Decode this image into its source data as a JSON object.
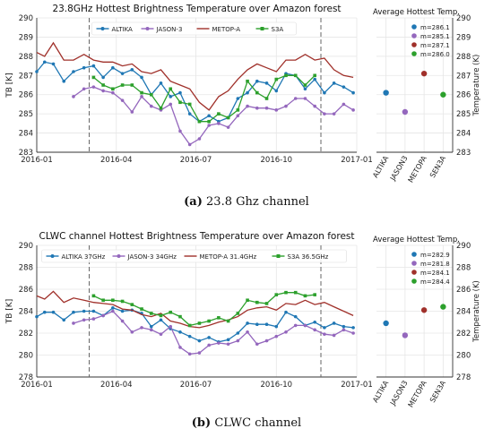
{
  "colors": {
    "ALTIKA": "#1f77b4",
    "JASON-3": "#9467bd",
    "METOP-A": "#a0302a",
    "S3A": "#2ca02c"
  },
  "captions": [
    {
      "letter": "(a)",
      "text": " 23.8 Ghz channel"
    },
    {
      "letter": "(b)",
      "text": " CLWC channel"
    }
  ],
  "chart_data": [
    {
      "type": "line",
      "title": "23.8GHz Hottest Brightness Temperature over Amazon forest",
      "xlabel": "",
      "ylabel": "TB [K]",
      "ylim": [
        283,
        290
      ],
      "yticks": [
        283,
        284,
        285,
        286,
        287,
        288,
        289,
        290
      ],
      "xticks": [
        "2016-01",
        "2016-04",
        "2016-07",
        "2016-10",
        "2017-01"
      ],
      "xrange": [
        "2016-01-01",
        "2017-01-01"
      ],
      "grid": true,
      "legend": "top-center",
      "vlines": [
        "2016-03-01",
        "2016-11-21"
      ],
      "series": [
        {
          "name": "ALTIKA",
          "marker": "dot",
          "x": [
            "2016-01-01",
            "2016-01-10",
            "2016-01-20",
            "2016-02-01",
            "2016-02-12",
            "2016-02-24",
            "2016-03-06",
            "2016-03-17",
            "2016-03-28",
            "2016-04-08",
            "2016-04-19",
            "2016-04-30",
            "2016-05-11",
            "2016-05-22",
            "2016-06-02",
            "2016-06-13",
            "2016-06-24",
            "2016-07-05",
            "2016-07-16",
            "2016-07-27",
            "2016-08-07",
            "2016-08-18",
            "2016-08-29",
            "2016-09-09",
            "2016-09-20",
            "2016-10-01",
            "2016-10-12",
            "2016-10-23",
            "2016-11-03",
            "2016-11-14",
            "2016-11-25",
            "2016-12-06",
            "2016-12-17",
            "2016-12-28"
          ],
          "y": [
            287.2,
            287.7,
            287.6,
            286.7,
            287.2,
            287.4,
            287.5,
            286.9,
            287.4,
            287.1,
            287.3,
            286.9,
            286.0,
            286.6,
            285.9,
            286.1,
            285.0,
            284.6,
            284.9,
            284.6,
            284.8,
            285.8,
            286.1,
            286.7,
            286.6,
            286.2,
            287.1,
            287.0,
            286.3,
            286.8,
            286.1,
            286.6,
            286.4,
            286.1
          ]
        },
        {
          "name": "JASON-3",
          "marker": "dot",
          "x": [
            "2016-02-12",
            "2016-02-24",
            "2016-03-06",
            "2016-03-17",
            "2016-03-28",
            "2016-04-08",
            "2016-04-19",
            "2016-04-30",
            "2016-05-11",
            "2016-05-22",
            "2016-06-02",
            "2016-06-13",
            "2016-06-24",
            "2016-07-05",
            "2016-07-16",
            "2016-07-27",
            "2016-08-07",
            "2016-08-18",
            "2016-08-29",
            "2016-09-09",
            "2016-09-20",
            "2016-10-01",
            "2016-10-12",
            "2016-10-23",
            "2016-11-03",
            "2016-11-14",
            "2016-11-25",
            "2016-12-06",
            "2016-12-17",
            "2016-12-28"
          ],
          "y": [
            285.9,
            286.3,
            286.4,
            286.2,
            286.1,
            285.7,
            285.1,
            285.9,
            285.4,
            285.2,
            285.5,
            284.1,
            283.4,
            283.7,
            284.4,
            284.5,
            284.3,
            284.9,
            285.4,
            285.3,
            285.3,
            285.2,
            285.4,
            285.8,
            285.8,
            285.4,
            285.0,
            285.0,
            285.5,
            285.2
          ]
        },
        {
          "name": "METOP-A",
          "marker": "none",
          "x": [
            "2016-01-01",
            "2016-01-10",
            "2016-01-20",
            "2016-02-01",
            "2016-02-12",
            "2016-02-24",
            "2016-03-06",
            "2016-03-17",
            "2016-03-28",
            "2016-04-08",
            "2016-04-19",
            "2016-04-30",
            "2016-05-11",
            "2016-05-22",
            "2016-06-02",
            "2016-06-13",
            "2016-06-24",
            "2016-07-05",
            "2016-07-16",
            "2016-07-27",
            "2016-08-07",
            "2016-08-18",
            "2016-08-29",
            "2016-09-09",
            "2016-09-20",
            "2016-10-01",
            "2016-10-12",
            "2016-10-23",
            "2016-11-03",
            "2016-11-14",
            "2016-11-25",
            "2016-12-06",
            "2016-12-17",
            "2016-12-28"
          ],
          "y": [
            288.2,
            288.0,
            288.7,
            287.8,
            287.8,
            288.1,
            287.8,
            287.7,
            287.7,
            287.5,
            287.6,
            287.2,
            287.1,
            287.3,
            286.7,
            286.5,
            286.3,
            285.6,
            285.2,
            285.9,
            286.2,
            286.8,
            287.3,
            287.6,
            287.4,
            287.2,
            287.8,
            287.8,
            288.1,
            287.8,
            287.9,
            287.3,
            287.0,
            286.9
          ]
        },
        {
          "name": "S3A",
          "marker": "square",
          "x": [
            "2016-03-06",
            "2016-03-17",
            "2016-03-28",
            "2016-04-08",
            "2016-04-19",
            "2016-04-30",
            "2016-05-11",
            "2016-05-22",
            "2016-06-02",
            "2016-06-13",
            "2016-06-24",
            "2016-07-05",
            "2016-07-16",
            "2016-07-27",
            "2016-08-07",
            "2016-08-18",
            "2016-08-29",
            "2016-09-09",
            "2016-09-20",
            "2016-10-01",
            "2016-10-12",
            "2016-10-23",
            "2016-11-03",
            "2016-11-14"
          ],
          "y": [
            286.9,
            286.5,
            286.3,
            286.5,
            286.5,
            286.1,
            286.0,
            285.3,
            286.3,
            285.6,
            285.5,
            284.6,
            284.6,
            285.0,
            284.8,
            285.2,
            286.7,
            286.1,
            285.8,
            286.8,
            287.0,
            287.0,
            286.5,
            287.0
          ]
        }
      ],
      "side_panel": {
        "title": "Average Hottest Temp.",
        "ylabel": "Temperature (K)",
        "categories": [
          "ALTIKA",
          "JASON3",
          "METOPA",
          "SEN3A"
        ],
        "values": [
          286.1,
          285.1,
          287.1,
          286.0
        ],
        "labels": [
          "m=286.1",
          "m=285.1",
          "m=287.1",
          "m=286.0"
        ],
        "ylim": [
          283,
          290
        ],
        "yticks": [
          283,
          284,
          285,
          286,
          287,
          288,
          289,
          290
        ]
      }
    },
    {
      "type": "line",
      "title": "CLWC channel Hottest Brightness Temperature over Amazon forest",
      "xlabel": "",
      "ylabel": "TB [K]",
      "ylim": [
        278,
        290
      ],
      "yticks": [
        278,
        280,
        282,
        284,
        286,
        288,
        290
      ],
      "xticks": [
        "2016-01",
        "2016-04",
        "2016-07",
        "2016-10",
        "2017-01"
      ],
      "xrange": [
        "2016-01-01",
        "2017-01-01"
      ],
      "grid": true,
      "legend": "top-center",
      "vlines": [
        "2016-03-01",
        "2016-11-21"
      ],
      "series": [
        {
          "name": "ALTIKA 37GHz",
          "marker": "dot",
          "x": [
            "2016-01-01",
            "2016-01-10",
            "2016-01-20",
            "2016-02-01",
            "2016-02-12",
            "2016-02-24",
            "2016-03-06",
            "2016-03-17",
            "2016-03-28",
            "2016-04-08",
            "2016-04-19",
            "2016-04-30",
            "2016-05-11",
            "2016-05-22",
            "2016-06-02",
            "2016-06-13",
            "2016-06-24",
            "2016-07-05",
            "2016-07-16",
            "2016-07-27",
            "2016-08-07",
            "2016-08-18",
            "2016-08-29",
            "2016-09-09",
            "2016-09-20",
            "2016-10-01",
            "2016-10-12",
            "2016-10-23",
            "2016-11-03",
            "2016-11-14",
            "2016-11-25",
            "2016-12-06",
            "2016-12-17",
            "2016-12-28"
          ],
          "y": [
            283.5,
            283.9,
            283.9,
            283.2,
            283.9,
            284.0,
            284.0,
            283.6,
            284.3,
            284.0,
            284.1,
            283.8,
            282.6,
            283.2,
            282.4,
            282.1,
            281.7,
            281.3,
            281.6,
            281.2,
            281.4,
            282.0,
            282.9,
            282.8,
            282.8,
            282.6,
            283.9,
            283.5,
            282.7,
            283.0,
            282.5,
            282.9,
            282.6,
            282.5
          ]
        },
        {
          "name": "JASON-3 34GHz",
          "marker": "dot",
          "x": [
            "2016-02-12",
            "2016-02-24",
            "2016-03-06",
            "2016-03-17",
            "2016-03-28",
            "2016-04-08",
            "2016-04-19",
            "2016-04-30",
            "2016-05-11",
            "2016-05-22",
            "2016-06-02",
            "2016-06-13",
            "2016-06-24",
            "2016-07-05",
            "2016-07-16",
            "2016-07-27",
            "2016-08-07",
            "2016-08-18",
            "2016-08-29",
            "2016-09-09",
            "2016-09-20",
            "2016-10-01",
            "2016-10-12",
            "2016-10-23",
            "2016-11-03",
            "2016-11-14",
            "2016-11-25",
            "2016-12-06",
            "2016-12-17",
            "2016-12-28"
          ],
          "y": [
            282.9,
            283.2,
            283.3,
            283.6,
            284.0,
            283.1,
            282.1,
            282.5,
            282.3,
            281.9,
            282.6,
            280.7,
            280.1,
            280.2,
            280.9,
            281.1,
            281.0,
            281.3,
            282.1,
            281.0,
            281.3,
            281.7,
            282.1,
            282.7,
            282.7,
            282.3,
            281.9,
            281.8,
            282.3,
            282.0
          ]
        },
        {
          "name": "METOP-A 31.4GHz",
          "marker": "none",
          "x": [
            "2016-01-01",
            "2016-01-10",
            "2016-01-20",
            "2016-02-01",
            "2016-02-12",
            "2016-02-24",
            "2016-03-06",
            "2016-03-17",
            "2016-03-28",
            "2016-04-08",
            "2016-04-19",
            "2016-04-30",
            "2016-05-11",
            "2016-05-22",
            "2016-06-02",
            "2016-06-13",
            "2016-06-24",
            "2016-07-05",
            "2016-07-16",
            "2016-07-27",
            "2016-08-07",
            "2016-08-18",
            "2016-08-29",
            "2016-09-09",
            "2016-09-20",
            "2016-10-01",
            "2016-10-12",
            "2016-10-23",
            "2016-11-03",
            "2016-11-14",
            "2016-11-25",
            "2016-12-06",
            "2016-12-17",
            "2016-12-28"
          ],
          "y": [
            285.4,
            285.1,
            285.8,
            284.8,
            285.2,
            285.0,
            284.8,
            284.7,
            284.6,
            284.2,
            284.1,
            283.7,
            283.5,
            283.8,
            283.1,
            282.9,
            282.6,
            282.5,
            282.7,
            283.0,
            283.2,
            283.5,
            284.1,
            284.3,
            284.4,
            284.1,
            284.7,
            284.6,
            285.0,
            284.6,
            284.8,
            284.4,
            284.0,
            283.6
          ]
        },
        {
          "name": "S3A 36.5GHz",
          "marker": "square",
          "x": [
            "2016-03-06",
            "2016-03-17",
            "2016-03-28",
            "2016-04-08",
            "2016-04-19",
            "2016-04-30",
            "2016-05-11",
            "2016-05-22",
            "2016-06-02",
            "2016-06-13",
            "2016-06-24",
            "2016-07-05",
            "2016-07-16",
            "2016-07-27",
            "2016-08-07",
            "2016-08-18",
            "2016-08-29",
            "2016-09-09",
            "2016-09-20",
            "2016-10-01",
            "2016-10-12",
            "2016-10-23",
            "2016-11-03",
            "2016-11-14"
          ],
          "y": [
            285.4,
            285.0,
            285.0,
            284.9,
            284.6,
            284.2,
            283.8,
            283.6,
            283.9,
            283.5,
            282.7,
            282.9,
            283.1,
            283.4,
            283.1,
            283.8,
            285.0,
            284.8,
            284.7,
            285.5,
            285.7,
            285.7,
            285.4,
            285.5
          ]
        }
      ],
      "side_panel": {
        "title": "Average Hottest Temp.",
        "ylabel": "Temperature (K)",
        "categories": [
          "ALTIKA",
          "JASON3",
          "METOPA",
          "SEN3A"
        ],
        "values": [
          282.9,
          281.8,
          284.1,
          284.4
        ],
        "labels": [
          "m=282.9",
          "m=281.8",
          "m=284.1",
          "m=284.4"
        ],
        "ylim": [
          278,
          290
        ],
        "yticks": [
          278,
          280,
          282,
          284,
          286,
          288,
          290
        ]
      }
    }
  ]
}
